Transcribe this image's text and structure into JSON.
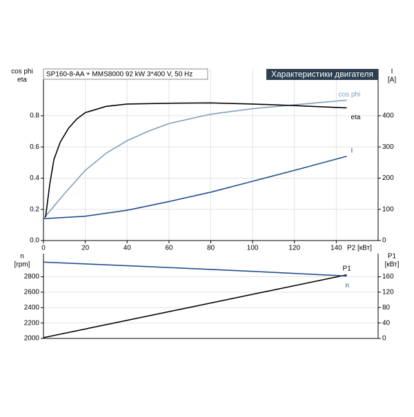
{
  "chart_data": [
    {
      "type": "line",
      "title": "SP160-8-AA + MMS8000  92 kW  3*400 V, 50 Hz",
      "subtitle": "Характеристики двигателя",
      "ylabel": [
        "cos phi",
        "eta"
      ],
      "y2label": [
        "I",
        "[A]"
      ],
      "xlabel": "P2 [кВт]",
      "xlim": [
        0,
        160
      ],
      "xticks": [
        0,
        20,
        40,
        60,
        80,
        100,
        120,
        140
      ],
      "ylim": [
        0,
        1.1
      ],
      "yticks": [
        {
          "value": 0,
          "label": "0.0"
        },
        0.2,
        0.4,
        0.6,
        0.8
      ],
      "y2lim": [
        0,
        550
      ],
      "y2ticks": [
        0,
        100,
        200,
        300,
        400
      ],
      "grid": true,
      "series": [
        {
          "name": "cos phi",
          "color": "#7d9fbd",
          "x": [
            0,
            10,
            20,
            30,
            40,
            50,
            60,
            80,
            100,
            120,
            145
          ],
          "values": [
            0.14,
            0.3,
            0.45,
            0.56,
            0.64,
            0.7,
            0.75,
            0.81,
            0.845,
            0.87,
            0.9
          ]
        },
        {
          "name": "eta",
          "color": "#000000",
          "x": [
            1,
            3,
            5,
            8,
            12,
            16,
            20,
            30,
            40,
            60,
            80,
            100,
            120,
            145
          ],
          "values": [
            0.15,
            0.36,
            0.52,
            0.63,
            0.72,
            0.78,
            0.82,
            0.86,
            0.875,
            0.88,
            0.882,
            0.875,
            0.865,
            0.85
          ]
        },
        {
          "name": "I",
          "color": "#1f4e8c",
          "axis": "y2",
          "x": [
            0,
            20,
            40,
            60,
            80,
            100,
            120,
            145
          ],
          "values": [
            70,
            78,
            97,
            125,
            155,
            190,
            225,
            270
          ]
        }
      ]
    },
    {
      "type": "line",
      "ylabel": [
        "n",
        "[rpm]"
      ],
      "y2label": [
        "P1",
        "[кВт]"
      ],
      "xlim": [
        0,
        160
      ],
      "ylim": [
        2000,
        3100
      ],
      "yticks": [
        2000,
        2200,
        2400,
        2600,
        2800
      ],
      "y2lim": [
        0,
        220
      ],
      "y2ticks": [
        0,
        40,
        80,
        120,
        160
      ],
      "grid": true,
      "series": [
        {
          "name": "P1",
          "color": "#000000",
          "axis": "y2",
          "x": [
            0,
            145
          ],
          "values": [
            2,
            165
          ]
        },
        {
          "name": "n",
          "color": "#1f4e8c",
          "x": [
            0,
            50,
            100,
            145
          ],
          "values": [
            2990,
            2932,
            2870,
            2810
          ]
        }
      ]
    }
  ]
}
